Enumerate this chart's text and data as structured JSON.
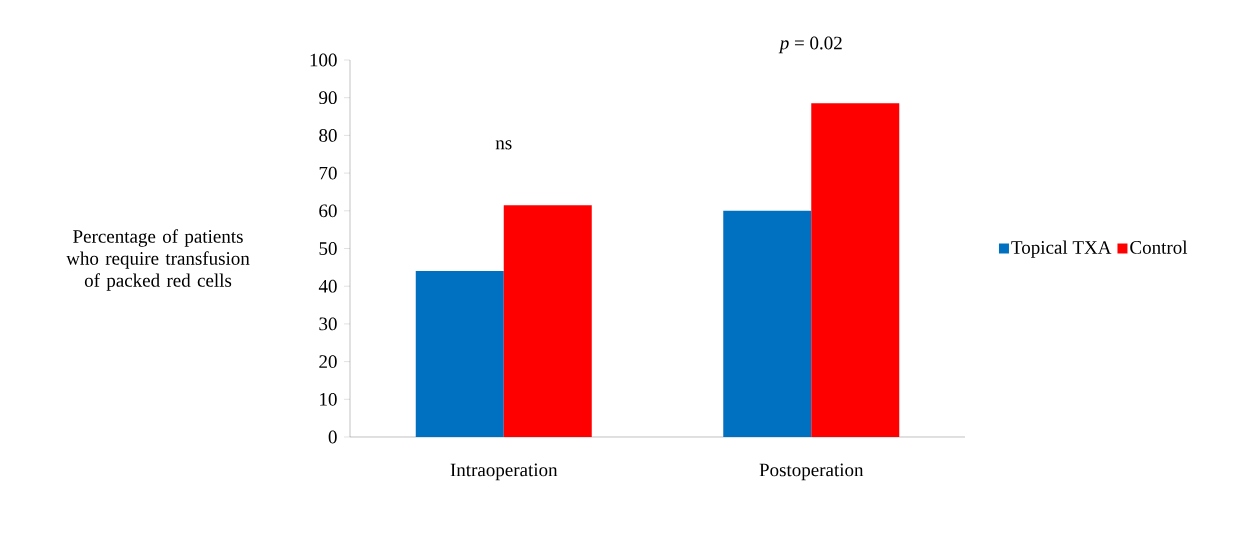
{
  "chart_data": {
    "type": "bar",
    "ylabel": "Percentage of patients who require transfusion of packed red cells",
    "categories": [
      "Intraoperation",
      "Postoperation"
    ],
    "series": [
      {
        "name": "Topical TXA",
        "color": "#0070c0",
        "values": [
          44,
          60
        ]
      },
      {
        "name": "Control",
        "color": "#ff0000",
        "values": [
          61.5,
          88.5
        ]
      }
    ],
    "ylim": [
      0,
      100
    ],
    "yticks": [
      0,
      10,
      20,
      30,
      40,
      50,
      60,
      70,
      80,
      90,
      100
    ],
    "grid": false,
    "legend": "right",
    "annotations": [
      "ns",
      "*p* = 0.02"
    ]
  }
}
